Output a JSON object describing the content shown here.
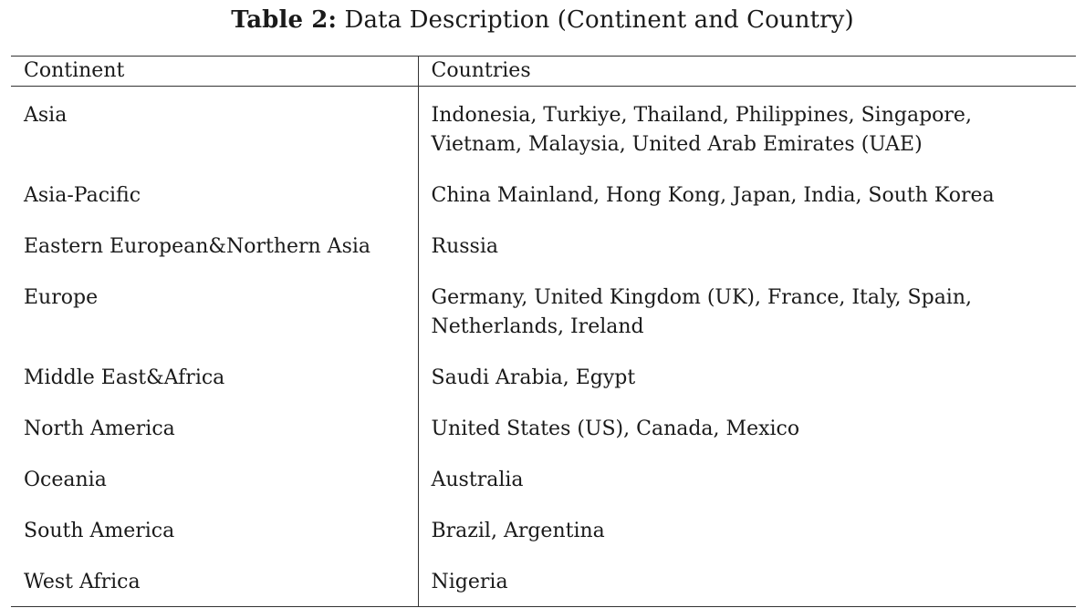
{
  "caption": {
    "label": "Table 2:",
    "text": "Data Description (Continent and Country)"
  },
  "table": {
    "headers": [
      "Continent",
      "Countries"
    ],
    "rows": [
      {
        "continent": "Asia",
        "countries": "Indonesia, Turkiye, Thailand, Philippines, Singapore, Vietnam, Malaysia, United Arab Emirates (UAE)"
      },
      {
        "continent": "Asia-Pacific",
        "countries": "China Mainland, Hong Kong, Japan, India, South Korea"
      },
      {
        "continent": "Eastern European&Northern Asia",
        "countries": "Russia"
      },
      {
        "continent": "Europe",
        "countries": "Germany, United Kingdom (UK), France, Italy, Spain, Netherlands, Ireland"
      },
      {
        "continent": "Middle East&Africa",
        "countries": "Saudi Arabia, Egypt"
      },
      {
        "continent": "North America",
        "countries": "United States (US), Canada, Mexico"
      },
      {
        "continent": "Oceania",
        "countries": "Australia"
      },
      {
        "continent": "South America",
        "countries": "Brazil, Argentina"
      },
      {
        "continent": "West Africa",
        "countries": "Nigeria"
      }
    ]
  }
}
